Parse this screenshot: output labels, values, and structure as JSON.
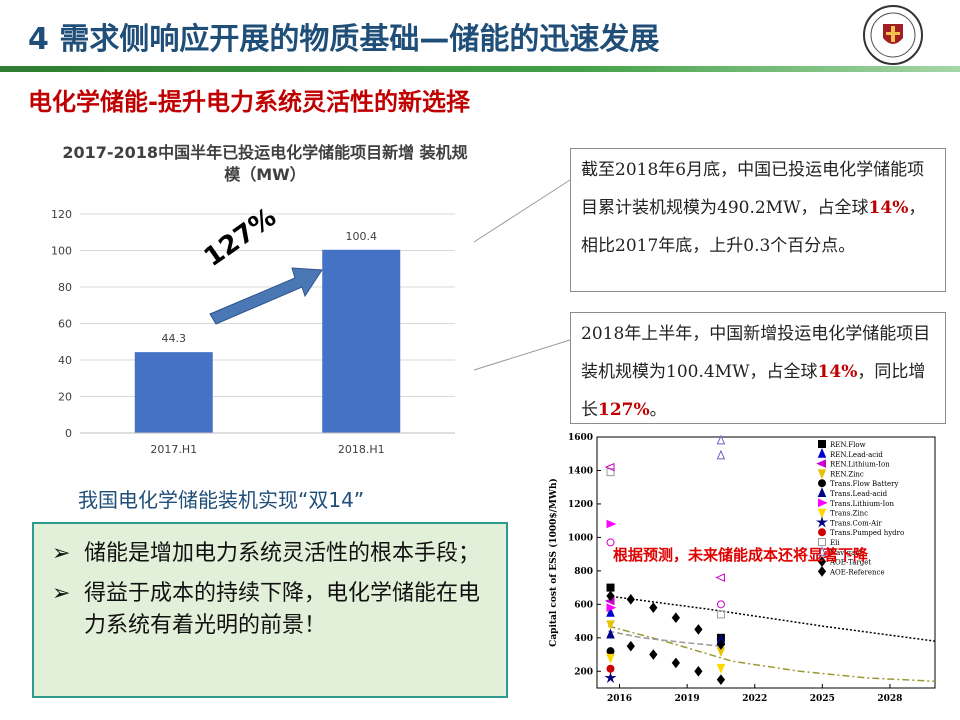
{
  "header": {
    "title": "4 需求侧响应开展的物质基础—储能的迅速发展",
    "subtitle": "电化学储能-提升电力系统灵活性的新选择"
  },
  "logo": {
    "icon": "university-seal-icon"
  },
  "bar_chart_title": "2017-2018中国半年已投运电化学储能项目新增 装机规模（MW）",
  "growth_label": "127%",
  "box1": {
    "part1": "截至2018年6月底，中国已投运电化学储能项目累计装机规模为490.2MW，占全球",
    "highlight": "14%",
    "part2": "，相比2017年底，上升0.3个百分点。"
  },
  "box2": {
    "part1": "2018年上半年，中国新增投运电化学储能项目装机规模为100.4MW，占全球",
    "highlight1": "14%",
    "part2": "，同比增长",
    "highlight2": "127%",
    "part3": "。"
  },
  "double14": "我国电化学储能装机实现“双14”",
  "bullets": [
    {
      "mark": "➢",
      "text": "储能是增加电力系统灵活性的根本手段；"
    },
    {
      "mark": "➢",
      "text": "得益于成本的持续下降，电化学储能在电力系统有着光明的前景！"
    }
  ],
  "ess_note": "根据预测，未来储能成本还将显著下降",
  "colors": {
    "title": "#1f4e79",
    "bar": "#4472c4",
    "arrow": "#4a78b4",
    "highlight": "#c00000",
    "green_box_bg": "#e2f0d9",
    "green_box_border": "#2f9a8f"
  },
  "chart_data": [
    {
      "type": "bar",
      "title": "2017-2018中国半年已投运电化学储能项目新增 装机规模（MW）",
      "categories": [
        "2017.H1",
        "2018.H1"
      ],
      "values": [
        44.3,
        100.4
      ],
      "ylim": [
        0,
        120
      ],
      "yticks": [
        0,
        20,
        40,
        60,
        80,
        100,
        120
      ],
      "grid": true,
      "legend": "none"
    },
    {
      "type": "scatter",
      "ylabel": "Capital cost of ESS (1000$/MWh)",
      "xlim": [
        2015,
        2030
      ],
      "ylim": [
        100,
        1600
      ],
      "xticks": [
        2016,
        2019,
        2022,
        2025,
        2028
      ],
      "yticks": [
        200,
        400,
        600,
        800,
        1000,
        1200,
        1400,
        1600
      ],
      "legend_position": "top-right",
      "series": [
        {
          "name": "REN.Flow",
          "marker": "square-filled",
          "color": "#000000",
          "points": [
            [
              2015.6,
              700
            ],
            [
              2020.5,
              400
            ]
          ]
        },
        {
          "name": "REN.Lead-acid",
          "marker": "triangle-up-filled",
          "color": "#0000cc",
          "points": [
            [
              2015.6,
              550
            ],
            [
              2020.5,
              380
            ]
          ]
        },
        {
          "name": "REN.Lithium-Ion",
          "marker": "triangle-left-filled",
          "color": "#cc00cc",
          "points": [
            [
              2015.6,
              620
            ]
          ]
        },
        {
          "name": "REN.Zinc",
          "marker": "triangle-down-filled",
          "color": "#e6c200",
          "points": [
            [
              2015.6,
              480
            ],
            [
              2020.5,
              320
            ]
          ]
        },
        {
          "name": "Trans.Flow Battery",
          "marker": "circle-filled",
          "color": "#000000",
          "points": [
            [
              2015.6,
              320
            ]
          ]
        },
        {
          "name": "Trans.Lead-acid",
          "marker": "triangle-up-filled",
          "color": "#00008b",
          "points": [
            [
              2015.6,
              420
            ],
            [
              2020.5,
              390
            ]
          ]
        },
        {
          "name": "Trans.Lithium-Ion",
          "marker": "triangle-right-filled",
          "color": "#ff00ff",
          "points": [
            [
              2015.6,
              1080
            ],
            [
              2015.6,
              580
            ]
          ]
        },
        {
          "name": "Trans.Zinc",
          "marker": "triangle-down-filled",
          "color": "#ffd700",
          "points": [
            [
              2015.6,
              280
            ],
            [
              2020.5,
              220
            ]
          ]
        },
        {
          "name": "Trans.Com-Air",
          "marker": "star-filled",
          "color": "#000080",
          "points": [
            [
              2015.6,
              160
            ]
          ]
        },
        {
          "name": "Trans.Pumped hydro",
          "marker": "circle-filled",
          "color": "#cc0000",
          "points": [
            [
              2015.6,
              215
            ]
          ]
        },
        {
          "name": "Eli",
          "marker": "square-open",
          "color": "#999999",
          "points": [
            [
              2015.6,
              1390
            ],
            [
              2020.5,
              540
            ]
          ]
        },
        {
          "name": "Navigant",
          "marker": "triangle-up-open",
          "color": "#6666cc",
          "points": [
            [
              2020.5,
              1580
            ],
            [
              2020.5,
              1490
            ]
          ]
        },
        {
          "name": "AOE-Target",
          "marker": "diamond-filled",
          "color": "#000000",
          "points": [
            [
              2015.6,
              650
            ],
            [
              2016.5,
              630
            ],
            [
              2017.5,
              580
            ],
            [
              2018.5,
              520
            ],
            [
              2019.5,
              450
            ],
            [
              2020.5,
              360
            ]
          ]
        },
        {
          "name": "AOE-Reference",
          "marker": "diamond-filled",
          "color": "#000000",
          "points": [
            [
              2016.5,
              350
            ],
            [
              2017.5,
              300
            ],
            [
              2018.5,
              250
            ],
            [
              2019.5,
              200
            ],
            [
              2020.5,
              150
            ]
          ]
        },
        {
          "name": "",
          "marker": "circle-open",
          "color": "#cc00cc",
          "points": [
            [
              2015.6,
              970
            ],
            [
              2020.5,
              600
            ]
          ]
        },
        {
          "name": "",
          "marker": "triangle-left-open",
          "color": "#cc00cc",
          "points": [
            [
              2015.6,
              1420
            ],
            [
              2020.5,
              760
            ]
          ]
        }
      ],
      "lines": [
        {
          "style": "dotted",
          "color": "#000000",
          "points": [
            [
              2015.5,
              650
            ],
            [
              2020,
              570
            ],
            [
              2025,
              470
            ],
            [
              2030,
              380
            ]
          ]
        },
        {
          "style": "dash-dot",
          "color": "#999933",
          "points": [
            [
              2015.5,
              470
            ],
            [
              2018,
              380
            ],
            [
              2021,
              260
            ],
            [
              2024,
              200
            ],
            [
              2027,
              160
            ],
            [
              2030,
              140
            ]
          ]
        },
        {
          "style": "dash",
          "color": "#999999",
          "points": [
            [
              2015.5,
              440
            ],
            [
              2017,
              400
            ],
            [
              2019,
              370
            ],
            [
              2020.5,
              350
            ]
          ]
        }
      ]
    }
  ]
}
